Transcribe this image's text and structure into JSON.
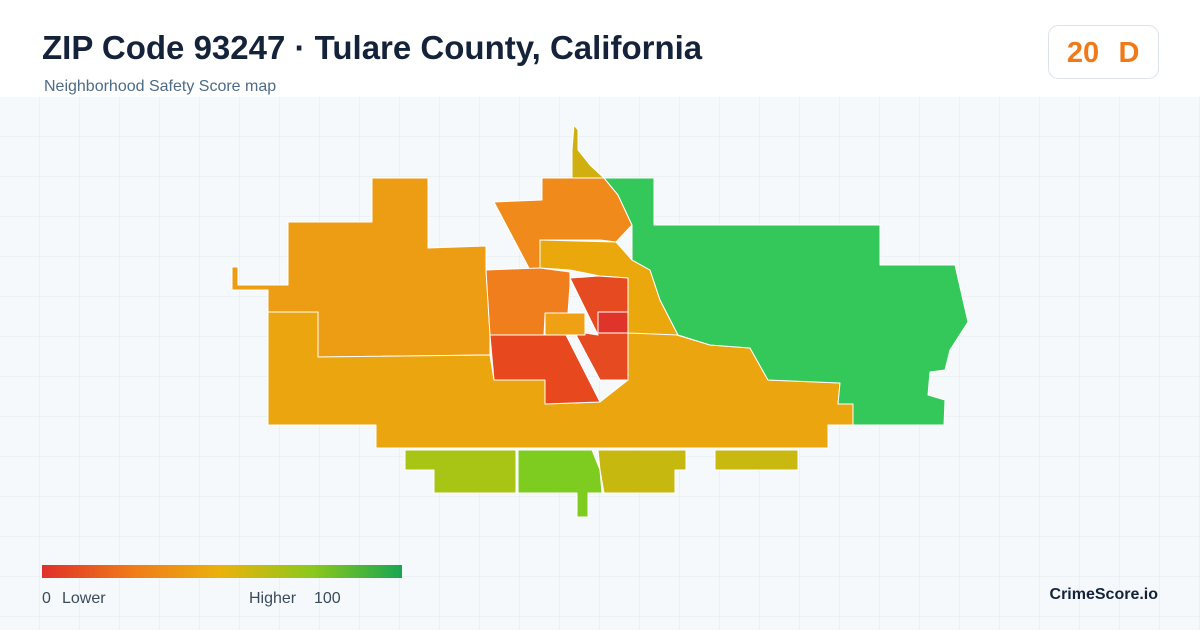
{
  "header": {
    "title": "ZIP Code 93247 · Tulare County, California",
    "subtitle": "Neighborhood Safety Score map"
  },
  "score": {
    "value": 20,
    "grade": "D"
  },
  "legend": {
    "min": 0,
    "low_label": "Lower",
    "high_label": "Higher",
    "max": 100
  },
  "brand": "CrimeScore.io"
}
